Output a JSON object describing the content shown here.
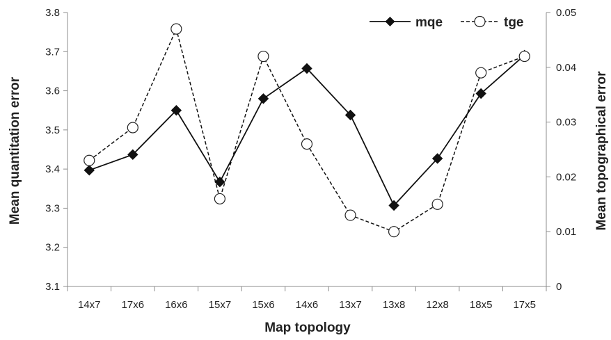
{
  "chart_data": {
    "type": "line",
    "categories": [
      "14x7",
      "17x6",
      "16x6",
      "15x7",
      "15x6",
      "14x6",
      "13x7",
      "13x8",
      "12x8",
      "18x5",
      "17x5"
    ],
    "xlabel": "Map topology",
    "ylabel_left": "Mean quantitation error",
    "ylabel_right": "Mean topographical error",
    "ylim_left": [
      3.1,
      3.8
    ],
    "ylim_right": [
      0,
      0.05
    ],
    "yticks_left": [
      "3.1",
      "3.2",
      "3.3",
      "3.4",
      "3.5",
      "3.6",
      "3.7",
      "3.8"
    ],
    "yticks_right": [
      "0",
      "0.01",
      "0.02",
      "0.03",
      "0.04",
      "0.05"
    ],
    "grid": false,
    "legend_position": "top-right",
    "series": [
      {
        "name": "mqe",
        "axis": "left",
        "marker": "filled-diamond",
        "line_style": "solid",
        "values": [
          3.397,
          3.437,
          3.55,
          3.367,
          3.58,
          3.657,
          3.538,
          3.307,
          3.427,
          3.593,
          3.691
        ]
      },
      {
        "name": "tge",
        "axis": "right",
        "marker": "open-circle",
        "line_style": "dashed",
        "values": [
          0.023,
          0.029,
          0.047,
          0.016,
          0.042,
          0.026,
          0.013,
          0.01,
          0.015,
          0.039,
          0.042
        ]
      }
    ]
  }
}
